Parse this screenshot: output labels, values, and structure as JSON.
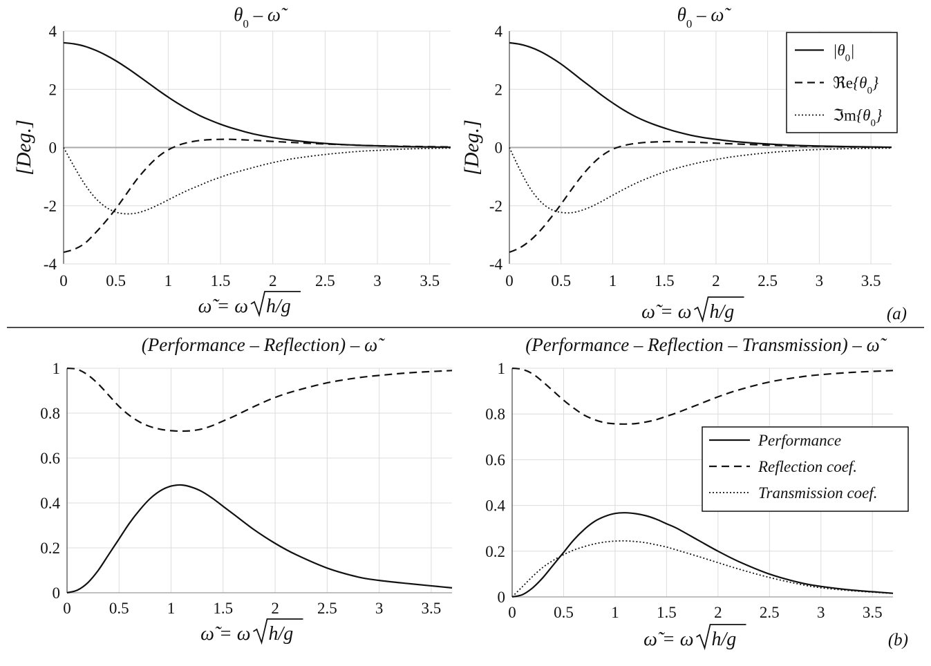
{
  "chart_data": [
    {
      "type": "line",
      "title": "θ0 – ω̃",
      "xlabel": "ω̃ = ω√(h/g)",
      "ylabel": "[Deg.]",
      "xlim": [
        0,
        3.7
      ],
      "ylim": [
        -4,
        4
      ],
      "xticks": [
        "0",
        "0.5",
        "1",
        "1.5",
        "2",
        "2.5",
        "3",
        "3.5"
      ],
      "yticks": [
        "-4",
        "-2",
        "0",
        "2",
        "4"
      ],
      "grid": true,
      "zero_line": true,
      "series": [
        {
          "name": "|θ0|",
          "style": "solid",
          "x": [
            0,
            0.1,
            0.2,
            0.3,
            0.4,
            0.5,
            0.6,
            0.7,
            0.8,
            0.9,
            1.0,
            1.1,
            1.2,
            1.3,
            1.4,
            1.5,
            1.6,
            1.8,
            2.0,
            2.2,
            2.5,
            2.8,
            3.0,
            3.3,
            3.7
          ],
          "values": [
            3.6,
            3.56,
            3.48,
            3.35,
            3.18,
            2.98,
            2.75,
            2.5,
            2.24,
            1.98,
            1.73,
            1.5,
            1.29,
            1.1,
            0.94,
            0.8,
            0.68,
            0.48,
            0.34,
            0.24,
            0.14,
            0.08,
            0.06,
            0.03,
            0.01
          ]
        },
        {
          "name": "Re{θ0}",
          "style": "dashed",
          "x": [
            0,
            0.1,
            0.2,
            0.3,
            0.4,
            0.5,
            0.6,
            0.7,
            0.8,
            0.9,
            1.0,
            1.1,
            1.2,
            1.3,
            1.4,
            1.5,
            1.6,
            1.8,
            2.0,
            2.2,
            2.5,
            2.8,
            3.0,
            3.3,
            3.7
          ],
          "values": [
            -3.6,
            -3.5,
            -3.3,
            -2.95,
            -2.55,
            -2.1,
            -1.6,
            -1.1,
            -0.68,
            -0.33,
            -0.08,
            0.08,
            0.18,
            0.24,
            0.27,
            0.28,
            0.28,
            0.25,
            0.21,
            0.17,
            0.12,
            0.08,
            0.06,
            0.04,
            0.02
          ]
        },
        {
          "name": "Im{θ0}",
          "style": "dotted",
          "x": [
            0,
            0.1,
            0.2,
            0.3,
            0.4,
            0.5,
            0.6,
            0.7,
            0.8,
            0.9,
            1.0,
            1.1,
            1.2,
            1.3,
            1.4,
            1.5,
            1.6,
            1.8,
            2.0,
            2.2,
            2.5,
            2.8,
            3.0,
            3.3,
            3.7
          ],
          "values": [
            0,
            -0.65,
            -1.25,
            -1.72,
            -2.04,
            -2.22,
            -2.28,
            -2.25,
            -2.14,
            -1.98,
            -1.8,
            -1.62,
            -1.45,
            -1.3,
            -1.15,
            -1.02,
            -0.9,
            -0.7,
            -0.52,
            -0.38,
            -0.24,
            -0.14,
            -0.1,
            -0.05,
            -0.02
          ]
        }
      ]
    },
    {
      "type": "line",
      "title": "θ0 – ω̃",
      "xlabel": "ω̃ = ω√(h/g)",
      "ylabel": "[Deg.]",
      "xlim": [
        0,
        3.7
      ],
      "ylim": [
        -4,
        4
      ],
      "xticks": [
        "0",
        "0.5",
        "1",
        "1.5",
        "2",
        "2.5",
        "3",
        "3.5"
      ],
      "yticks": [
        "-4",
        "-2",
        "0",
        "2",
        "4"
      ],
      "grid": true,
      "zero_line": true,
      "panel_label": "(a)",
      "legend": {
        "position": "top-right",
        "entries": [
          "|θ0|",
          "Re{θ0}",
          "Im{θ0}"
        ]
      },
      "series": [
        {
          "name": "|θ0|",
          "style": "solid",
          "x": [
            0,
            0.1,
            0.2,
            0.3,
            0.4,
            0.5,
            0.6,
            0.7,
            0.8,
            0.9,
            1.0,
            1.1,
            1.2,
            1.3,
            1.4,
            1.5,
            1.6,
            1.8,
            2.0,
            2.2,
            2.5,
            2.8,
            3.0,
            3.3,
            3.7
          ],
          "values": [
            3.6,
            3.55,
            3.45,
            3.3,
            3.1,
            2.87,
            2.6,
            2.32,
            2.05,
            1.78,
            1.53,
            1.3,
            1.1,
            0.93,
            0.79,
            0.67,
            0.56,
            0.39,
            0.28,
            0.2,
            0.12,
            0.07,
            0.05,
            0.03,
            0.01
          ]
        },
        {
          "name": "Re{θ0}",
          "style": "dashed",
          "x": [
            0,
            0.1,
            0.2,
            0.3,
            0.4,
            0.5,
            0.6,
            0.7,
            0.8,
            0.9,
            1.0,
            1.1,
            1.2,
            1.3,
            1.4,
            1.5,
            1.6,
            1.8,
            2.0,
            2.2,
            2.5,
            2.8,
            3.0,
            3.3,
            3.7
          ],
          "values": [
            -3.6,
            -3.45,
            -3.2,
            -2.85,
            -2.42,
            -1.95,
            -1.45,
            -0.98,
            -0.58,
            -0.27,
            -0.06,
            0.06,
            0.13,
            0.17,
            0.19,
            0.2,
            0.2,
            0.18,
            0.15,
            0.12,
            0.08,
            0.05,
            0.04,
            0.02,
            0.01
          ]
        },
        {
          "name": "Im{θ0}",
          "style": "dotted",
          "x": [
            0,
            0.1,
            0.2,
            0.3,
            0.4,
            0.5,
            0.6,
            0.7,
            0.8,
            0.9,
            1.0,
            1.1,
            1.2,
            1.3,
            1.4,
            1.5,
            1.6,
            1.8,
            2.0,
            2.2,
            2.5,
            2.8,
            3.0,
            3.3,
            3.7
          ],
          "values": [
            0,
            -0.75,
            -1.4,
            -1.85,
            -2.12,
            -2.23,
            -2.24,
            -2.16,
            -2.02,
            -1.84,
            -1.64,
            -1.45,
            -1.27,
            -1.11,
            -0.97,
            -0.84,
            -0.73,
            -0.55,
            -0.41,
            -0.3,
            -0.18,
            -0.1,
            -0.07,
            -0.04,
            -0.02
          ]
        }
      ]
    },
    {
      "type": "line",
      "title": "(Performance – Reflection) – ω̃",
      "xlabel": "ω̃ = ω√(h/g)",
      "ylabel": "",
      "xlim": [
        0,
        3.7
      ],
      "ylim": [
        0,
        1
      ],
      "xticks": [
        "0",
        "0.5",
        "1",
        "1.5",
        "2",
        "2.5",
        "3",
        "3.5"
      ],
      "yticks": [
        "0",
        "0.2",
        "0.4",
        "0.6",
        "0.8",
        "1"
      ],
      "grid": true,
      "series": [
        {
          "name": "Performance",
          "style": "solid",
          "x": [
            0,
            0.1,
            0.2,
            0.3,
            0.4,
            0.5,
            0.6,
            0.7,
            0.8,
            0.9,
            1.0,
            1.1,
            1.2,
            1.3,
            1.4,
            1.5,
            1.6,
            1.8,
            2.0,
            2.2,
            2.5,
            2.8,
            3.0,
            3.3,
            3.7
          ],
          "values": [
            0,
            0.012,
            0.045,
            0.1,
            0.17,
            0.24,
            0.31,
            0.37,
            0.42,
            0.455,
            0.475,
            0.48,
            0.47,
            0.45,
            0.42,
            0.385,
            0.35,
            0.28,
            0.22,
            0.17,
            0.11,
            0.07,
            0.055,
            0.04,
            0.022
          ]
        },
        {
          "name": "Reflection coef.",
          "style": "dashed",
          "x": [
            0,
            0.1,
            0.2,
            0.3,
            0.4,
            0.5,
            0.6,
            0.7,
            0.8,
            0.9,
            1.0,
            1.1,
            1.2,
            1.3,
            1.4,
            1.5,
            1.6,
            1.8,
            2.0,
            2.2,
            2.5,
            2.8,
            3.0,
            3.3,
            3.7
          ],
          "values": [
            1.0,
            0.995,
            0.97,
            0.93,
            0.88,
            0.83,
            0.79,
            0.76,
            0.74,
            0.728,
            0.722,
            0.72,
            0.722,
            0.73,
            0.745,
            0.765,
            0.785,
            0.83,
            0.87,
            0.9,
            0.935,
            0.958,
            0.968,
            0.98,
            0.99
          ]
        }
      ]
    },
    {
      "type": "line",
      "title": "(Performance – Reflection – Transmission) – ω̃",
      "xlabel": "ω̃ = ω√(h/g)",
      "ylabel": "",
      "xlim": [
        0,
        3.7
      ],
      "ylim": [
        0,
        1
      ],
      "xticks": [
        "0",
        "0.5",
        "1",
        "1.5",
        "2",
        "2.5",
        "3",
        "3.5"
      ],
      "yticks": [
        "0",
        "0.2",
        "0.4",
        "0.6",
        "0.8",
        "1"
      ],
      "grid": true,
      "panel_label": "(b)",
      "legend": {
        "position": "right",
        "entries": [
          "Performance",
          "Reflection coef.",
          "Transmission coef."
        ]
      },
      "series": [
        {
          "name": "Performance",
          "style": "solid",
          "x": [
            0,
            0.1,
            0.2,
            0.3,
            0.4,
            0.5,
            0.6,
            0.7,
            0.8,
            0.9,
            1.0,
            1.1,
            1.2,
            1.3,
            1.4,
            1.5,
            1.6,
            1.8,
            2.0,
            2.2,
            2.5,
            2.8,
            3.0,
            3.3,
            3.7
          ],
          "values": [
            0,
            0.01,
            0.04,
            0.085,
            0.14,
            0.195,
            0.25,
            0.295,
            0.33,
            0.352,
            0.365,
            0.368,
            0.364,
            0.355,
            0.34,
            0.32,
            0.3,
            0.25,
            0.2,
            0.155,
            0.1,
            0.062,
            0.046,
            0.03,
            0.016
          ]
        },
        {
          "name": "Reflection coef.",
          "style": "dashed",
          "x": [
            0,
            0.1,
            0.2,
            0.3,
            0.4,
            0.5,
            0.6,
            0.7,
            0.8,
            0.9,
            1.0,
            1.1,
            1.2,
            1.3,
            1.4,
            1.5,
            1.6,
            1.8,
            2.0,
            2.2,
            2.5,
            2.8,
            3.0,
            3.3,
            3.7
          ],
          "values": [
            1.0,
            0.995,
            0.975,
            0.94,
            0.9,
            0.86,
            0.825,
            0.795,
            0.775,
            0.762,
            0.757,
            0.756,
            0.758,
            0.765,
            0.775,
            0.79,
            0.805,
            0.84,
            0.875,
            0.905,
            0.94,
            0.962,
            0.972,
            0.982,
            0.99
          ]
        },
        {
          "name": "Transmission coef.",
          "style": "dotted",
          "x": [
            0,
            0.1,
            0.2,
            0.3,
            0.4,
            0.5,
            0.6,
            0.7,
            0.8,
            0.9,
            1.0,
            1.1,
            1.2,
            1.3,
            1.4,
            1.5,
            1.6,
            1.8,
            2.0,
            2.2,
            2.5,
            2.8,
            3.0,
            3.3,
            3.7
          ],
          "values": [
            0,
            0.045,
            0.09,
            0.13,
            0.16,
            0.185,
            0.205,
            0.22,
            0.232,
            0.24,
            0.244,
            0.245,
            0.242,
            0.237,
            0.228,
            0.218,
            0.205,
            0.178,
            0.15,
            0.122,
            0.085,
            0.055,
            0.04,
            0.027,
            0.015
          ]
        }
      ]
    }
  ]
}
